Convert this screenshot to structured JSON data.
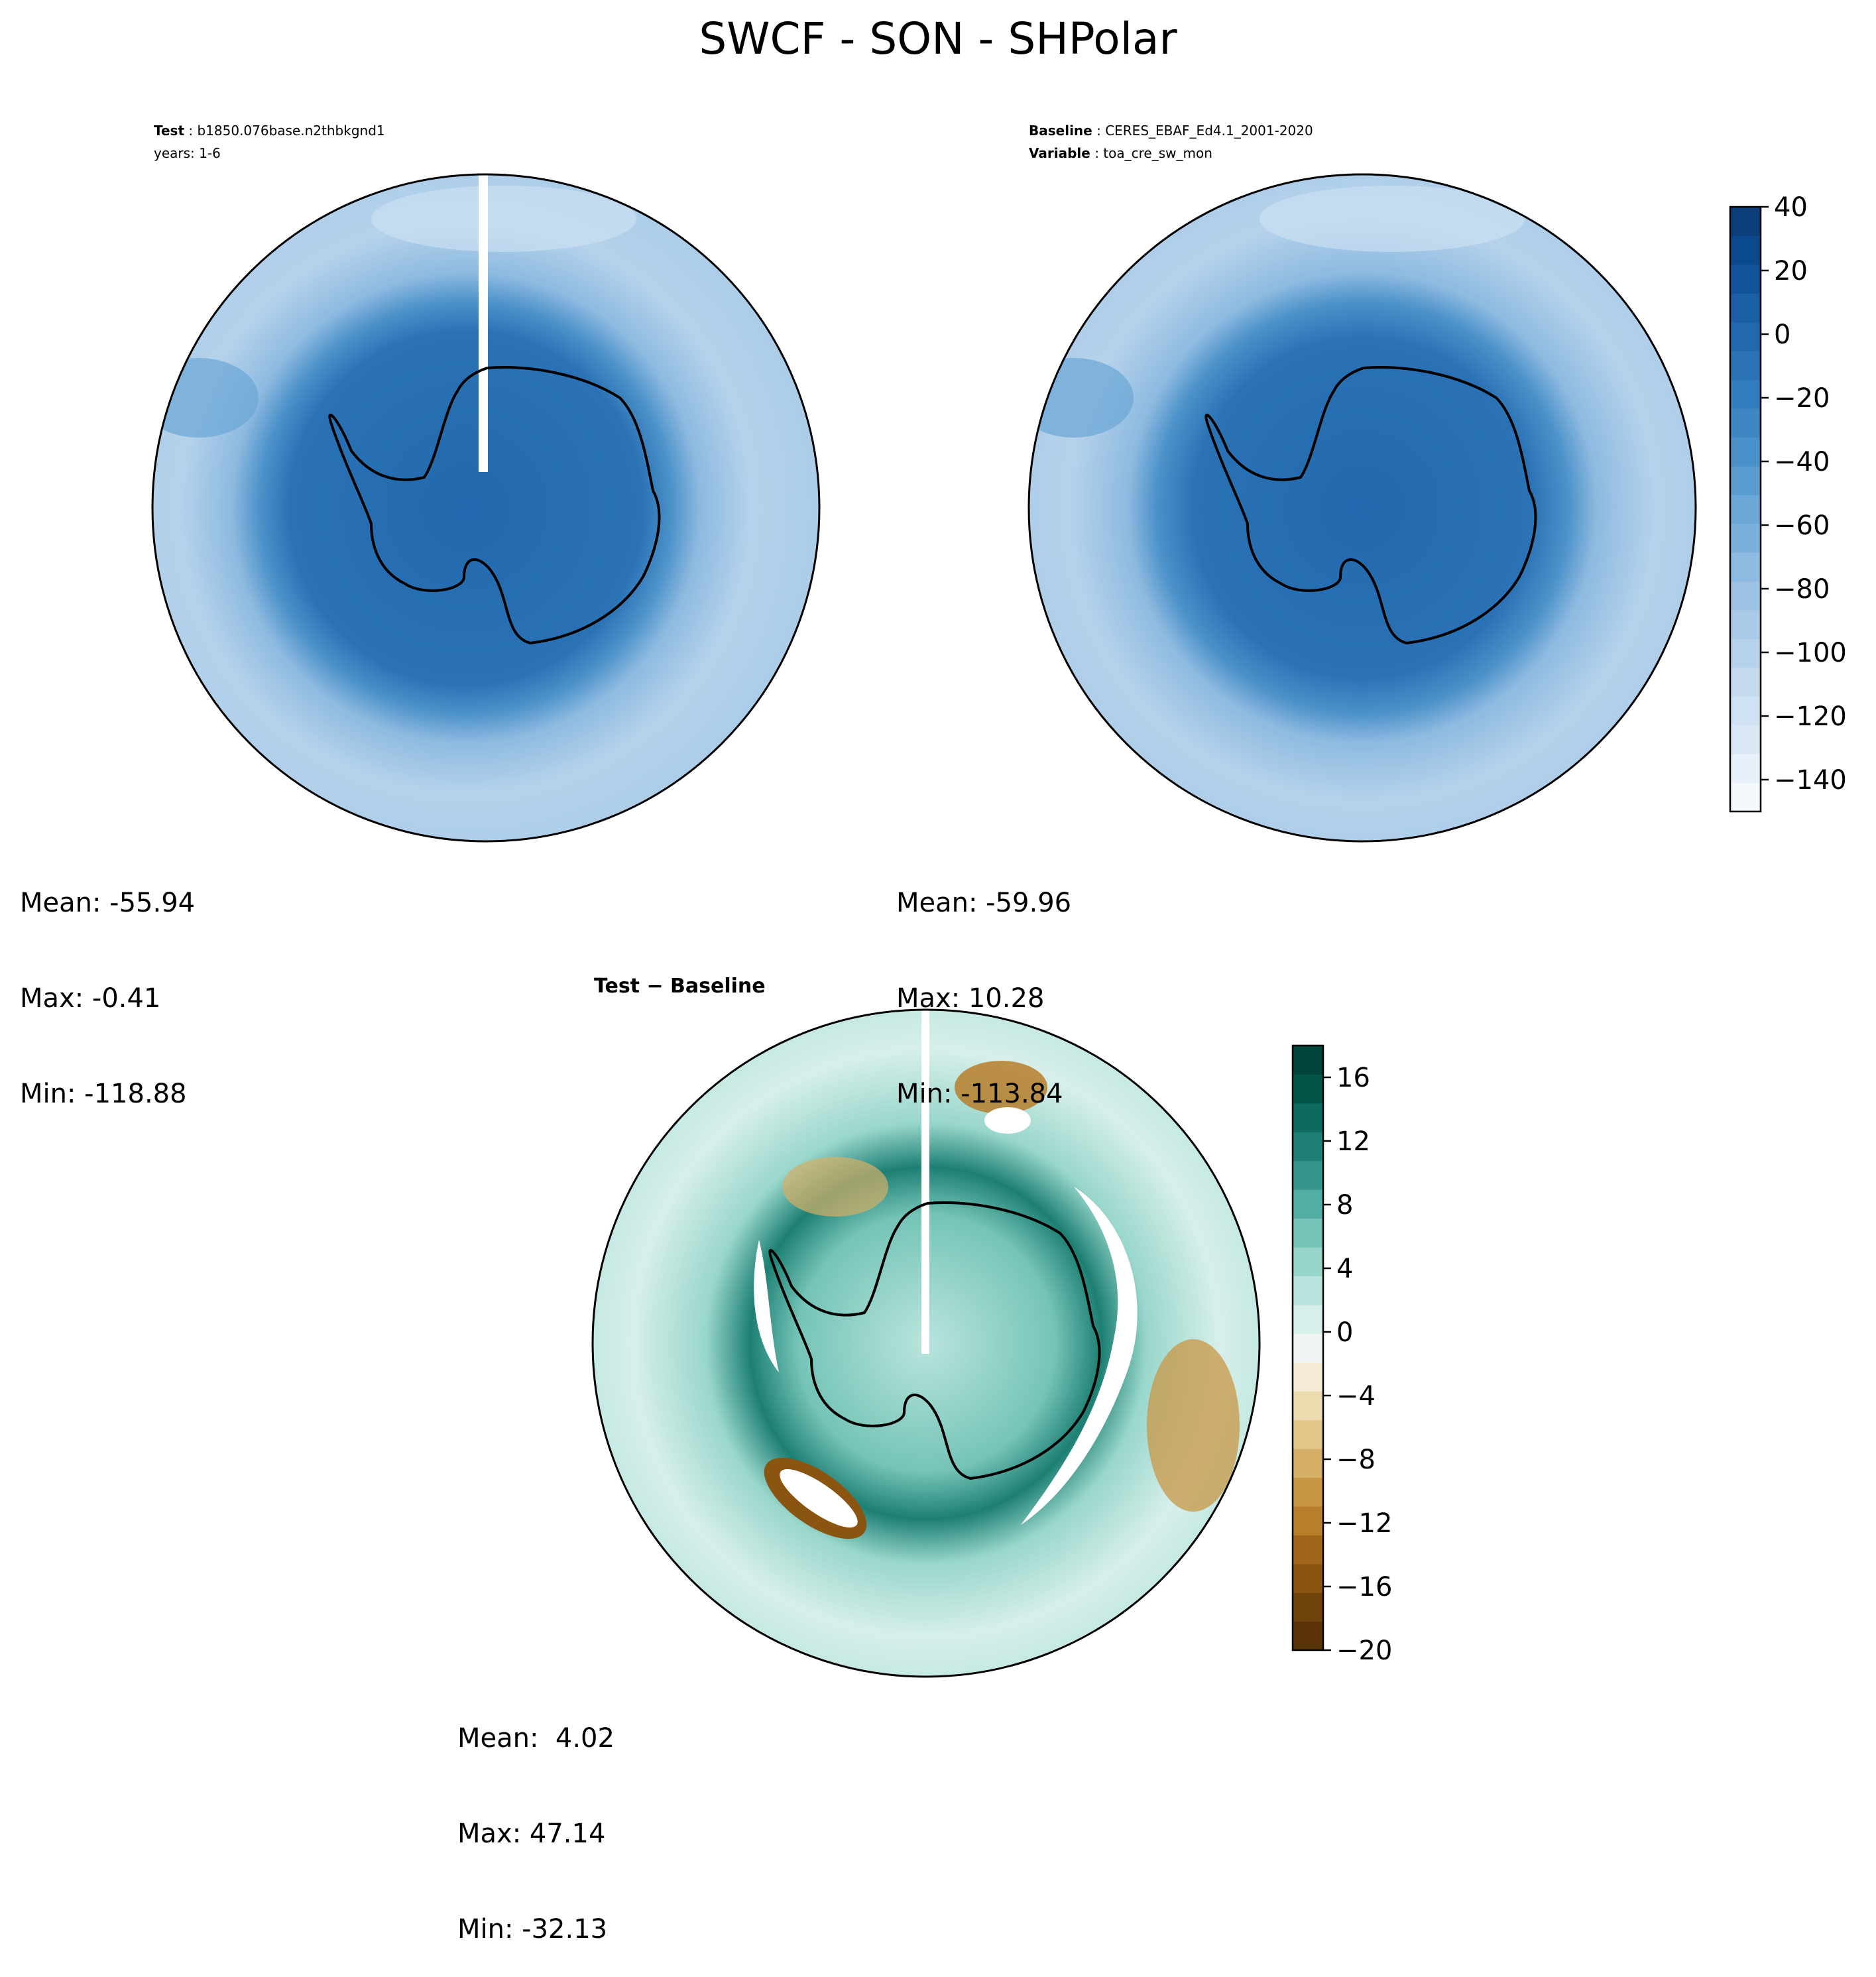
{
  "figure": {
    "title": "SWCF - SON - SHPolar"
  },
  "panels": {
    "test": {
      "label_key": "Test",
      "label_value": "b1850.076base.n2thbkgnd1",
      "years": "years: 1-6",
      "mean": "Mean: -55.94",
      "max": "Max: -0.41",
      "min": "Min: -118.88"
    },
    "baseline": {
      "label_key": "Baseline",
      "label_value": "CERES_EBAF_Ed4.1_2001-2020",
      "variable_key": "Variable",
      "variable_value": "toa_cre_sw_mon",
      "mean": "Mean: -59.96",
      "max": "Max: 10.28",
      "min": "Min: -113.84"
    },
    "diff": {
      "title": "Test − Baseline",
      "mean": "Mean:  4.02",
      "max": "Max: 47.14",
      "min": "Min: -32.13"
    }
  },
  "colorbars": {
    "main": {
      "ticks": [
        "40",
        "20",
        "0",
        "−20",
        "−40",
        "−60",
        "−80",
        "−100",
        "−120",
        "−140"
      ],
      "tick_values": [
        40,
        20,
        0,
        -20,
        -40,
        -60,
        -80,
        -100,
        -120,
        -140
      ],
      "range": [
        -150,
        40
      ],
      "colors": [
        "#f5f9fd",
        "#e8f1f9",
        "#dbe9f6",
        "#cfe2f3",
        "#c3daef",
        "#b6d2eb",
        "#a9cbe7",
        "#9cc3e3",
        "#8dbae0",
        "#7cb0dc",
        "#6aa6d6",
        "#5a9ccf",
        "#4b91c9",
        "#3e87c3",
        "#327dbd",
        "#2a72b5",
        "#2268ad",
        "#1a5ea4",
        "#12549a",
        "#0a498c",
        "#0b3e7a"
      ]
    },
    "diff": {
      "ticks": [
        "16",
        "12",
        "8",
        "4",
        "0",
        "−4",
        "−8",
        "−12",
        "−16",
        "−20"
      ],
      "tick_values": [
        16,
        12,
        8,
        4,
        0,
        -4,
        -8,
        -12,
        -16,
        -20
      ],
      "range": [
        -20,
        18
      ],
      "colors": [
        "#5a3407",
        "#70420b",
        "#8a5411",
        "#a2661b",
        "#b77e2c",
        "#c89746",
        "#d6af66",
        "#e2c78b",
        "#eedcb1",
        "#f6ecd6",
        "#eef5f3",
        "#d7efea",
        "#b9e4dd",
        "#98d6cb",
        "#75c4b7",
        "#52aea2",
        "#34968b",
        "#1d7f73",
        "#0d6a5d",
        "#035449",
        "#01443a"
      ]
    }
  },
  "chart_data": [
    {
      "type": "heatmap",
      "projection": "south-polar-stereographic",
      "panel": "Test",
      "case": "b1850.076base.n2thbkgnd1",
      "years": "1-6",
      "mean": -55.94,
      "max": -0.41,
      "min": -118.88,
      "colorbar_range": [
        -150,
        40
      ]
    },
    {
      "type": "heatmap",
      "projection": "south-polar-stereographic",
      "panel": "Baseline",
      "case": "CERES_EBAF_Ed4.1_2001-2020",
      "variable": "toa_cre_sw_mon",
      "mean": -59.96,
      "max": 10.28,
      "min": -113.84,
      "colorbar_range": [
        -150,
        40
      ]
    },
    {
      "type": "heatmap",
      "projection": "south-polar-stereographic",
      "panel": "Test − Baseline",
      "mean": 4.02,
      "max": 47.14,
      "min": -32.13,
      "colorbar_range": [
        -20,
        18
      ]
    }
  ]
}
